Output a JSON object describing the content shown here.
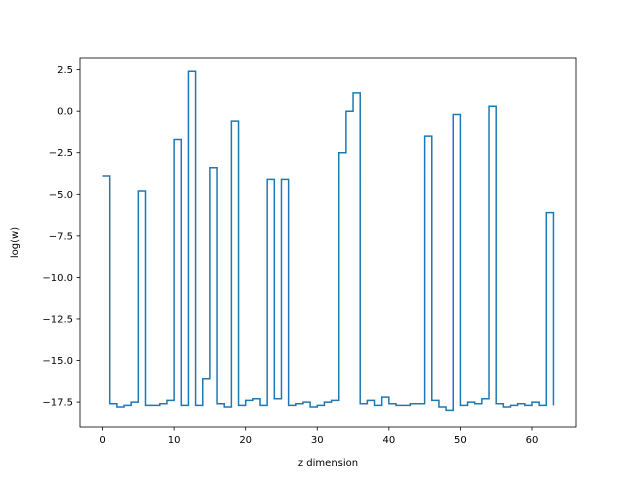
{
  "chart_data": {
    "type": "line",
    "drawstyle": "steps-post",
    "title": "",
    "xlabel": "z dimension",
    "ylabel": "log(w)",
    "xlim": [
      -3.15,
      66.15
    ],
    "ylim": [
      -19.0,
      3.2
    ],
    "xticks": [
      0,
      10,
      20,
      30,
      40,
      50,
      60
    ],
    "xtick_labels": [
      "0",
      "10",
      "20",
      "30",
      "40",
      "50",
      "60"
    ],
    "yticks": [
      2.5,
      0.0,
      -2.5,
      -5.0,
      -7.5,
      -10.0,
      -12.5,
      -15.0,
      -17.5
    ],
    "ytick_labels": [
      "2.5",
      "0.0",
      "−2.5",
      "−5.0",
      "−7.5",
      "−10.0",
      "−12.5",
      "−15.0",
      "−17.5"
    ],
    "grid": false,
    "series": [
      {
        "color": "#1f77b4",
        "x": [
          0,
          1,
          2,
          3,
          4,
          5,
          6,
          7,
          8,
          9,
          10,
          11,
          12,
          13,
          14,
          15,
          16,
          17,
          18,
          19,
          20,
          21,
          22,
          23,
          24,
          25,
          26,
          27,
          28,
          29,
          30,
          31,
          32,
          33,
          34,
          35,
          36,
          37,
          38,
          39,
          40,
          41,
          42,
          43,
          44,
          45,
          46,
          47,
          48,
          49,
          50,
          51,
          52,
          53,
          54,
          55,
          56,
          57,
          58,
          59,
          60,
          61,
          62,
          63
        ],
        "values": [
          -3.9,
          -17.6,
          -17.8,
          -17.7,
          -17.5,
          -4.8,
          -17.7,
          -17.7,
          -17.6,
          -17.4,
          -1.7,
          -17.7,
          2.4,
          -17.7,
          -16.1,
          -3.4,
          -17.6,
          -17.8,
          -0.6,
          -17.7,
          -17.4,
          -17.3,
          -17.7,
          -4.1,
          -17.3,
          -4.1,
          -17.7,
          -17.6,
          -17.5,
          -17.8,
          -17.7,
          -17.5,
          -17.4,
          -2.5,
          0.0,
          1.1,
          -17.6,
          -17.4,
          -17.7,
          -17.2,
          -17.6,
          -17.7,
          -17.7,
          -17.6,
          -17.6,
          -1.5,
          -17.4,
          -17.8,
          -18.0,
          -0.2,
          -17.7,
          -17.5,
          -17.6,
          -17.3,
          0.3,
          -17.6,
          -17.8,
          -17.7,
          -17.6,
          -17.7,
          -17.5,
          -17.7,
          -6.1,
          -17.7
        ]
      }
    ]
  }
}
